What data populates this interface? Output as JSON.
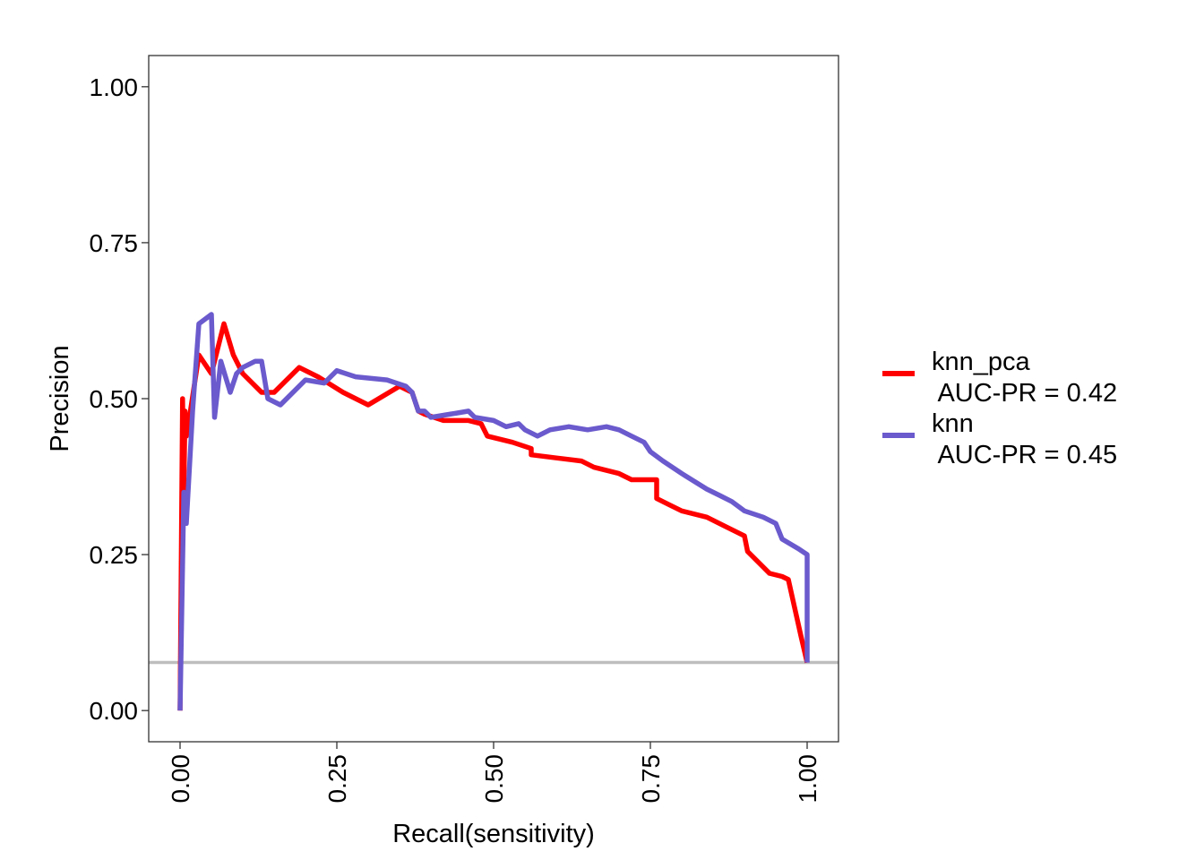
{
  "chart_data": {
    "type": "line",
    "xlabel": "Recall(sensitivity)",
    "ylabel": "Precision",
    "xlim": [
      -0.05,
      1.05
    ],
    "ylim": [
      -0.05,
      1.05
    ],
    "x_ticks": [
      "0.00",
      "0.25",
      "0.50",
      "0.75",
      "1.00"
    ],
    "y_ticks": [
      "0.00",
      "0.25",
      "0.50",
      "0.75",
      "1.00"
    ],
    "grid": false,
    "legend_position": "right",
    "baseline": {
      "y": 0.077,
      "color": "#bebebe"
    },
    "series": [
      {
        "name": "knn_pca",
        "label_line1": "knn_pca",
        "label_line2": " AUC-PR = 0.42",
        "color": "#ff0000",
        "x": [
          0.0,
          0.004,
          0.006,
          0.008,
          0.01,
          0.012,
          0.03,
          0.05,
          0.07,
          0.085,
          0.1,
          0.13,
          0.15,
          0.19,
          0.22,
          0.26,
          0.3,
          0.35,
          0.37,
          0.38,
          0.39,
          0.42,
          0.46,
          0.48,
          0.49,
          0.53,
          0.56,
          0.56,
          0.6,
          0.64,
          0.66,
          0.7,
          0.72,
          0.76,
          0.76,
          0.78,
          0.8,
          0.84,
          0.87,
          0.9,
          0.905,
          0.94,
          0.96,
          0.97,
          0.99,
          1.0
        ],
        "y": [
          0.0,
          0.5,
          0.35,
          0.48,
          0.44,
          0.45,
          0.57,
          0.54,
          0.62,
          0.57,
          0.54,
          0.51,
          0.51,
          0.55,
          0.535,
          0.51,
          0.49,
          0.52,
          0.51,
          0.48,
          0.475,
          0.465,
          0.465,
          0.46,
          0.44,
          0.43,
          0.42,
          0.41,
          0.405,
          0.4,
          0.39,
          0.38,
          0.37,
          0.37,
          0.34,
          0.33,
          0.32,
          0.31,
          0.295,
          0.28,
          0.255,
          0.22,
          0.215,
          0.21,
          0.12,
          0.077
        ]
      },
      {
        "name": "knn",
        "label_line1": "knn",
        "label_line2": " AUC-PR = 0.45",
        "color": "#6a5acd",
        "x": [
          0.0,
          0.006,
          0.01,
          0.02,
          0.03,
          0.05,
          0.055,
          0.065,
          0.08,
          0.09,
          0.1,
          0.12,
          0.13,
          0.14,
          0.16,
          0.2,
          0.23,
          0.25,
          0.28,
          0.33,
          0.36,
          0.37,
          0.38,
          0.38,
          0.39,
          0.4,
          0.43,
          0.46,
          0.47,
          0.5,
          0.52,
          0.54,
          0.55,
          0.57,
          0.59,
          0.62,
          0.65,
          0.68,
          0.7,
          0.72,
          0.74,
          0.75,
          0.77,
          0.8,
          0.84,
          0.86,
          0.88,
          0.9,
          0.93,
          0.95,
          0.96,
          0.985,
          1.0,
          1.0
        ],
        "y": [
          0.0,
          0.35,
          0.3,
          0.48,
          0.62,
          0.635,
          0.47,
          0.56,
          0.51,
          0.54,
          0.55,
          0.56,
          0.56,
          0.5,
          0.49,
          0.53,
          0.525,
          0.545,
          0.535,
          0.53,
          0.52,
          0.51,
          0.48,
          0.48,
          0.48,
          0.47,
          0.475,
          0.48,
          0.47,
          0.465,
          0.455,
          0.46,
          0.45,
          0.44,
          0.45,
          0.455,
          0.45,
          0.455,
          0.45,
          0.44,
          0.43,
          0.415,
          0.4,
          0.38,
          0.355,
          0.345,
          0.335,
          0.32,
          0.31,
          0.3,
          0.275,
          0.26,
          0.25,
          0.077
        ]
      }
    ]
  }
}
